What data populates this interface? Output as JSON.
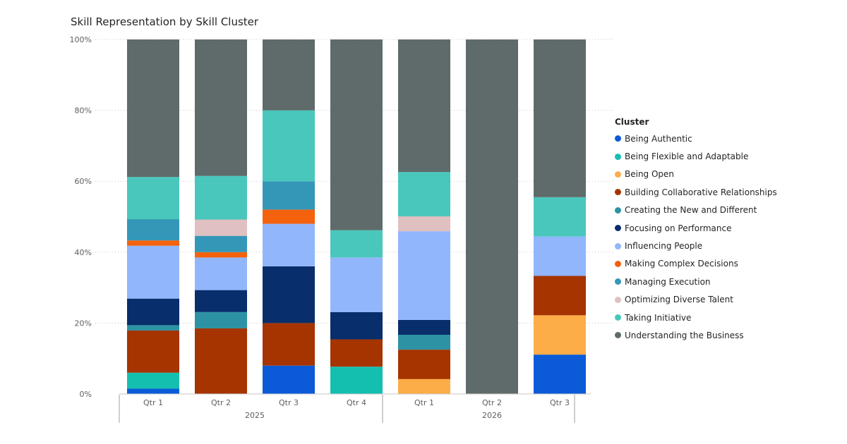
{
  "chart_data": {
    "type": "bar",
    "stacked": true,
    "normalized": true,
    "title": "Skill Representation by Skill Cluster",
    "legend_title": "Cluster",
    "legend_position": "right",
    "grid": true,
    "ylim": [
      0,
      100
    ],
    "yticks": [
      "0%",
      "20%",
      "40%",
      "60%",
      "80%",
      "100%"
    ],
    "categories": [
      "Qtr 1",
      "Qtr 2",
      "Qtr 3",
      "Qtr 4",
      "Qtr 1",
      "Qtr 2",
      "Qtr 3"
    ],
    "groups": [
      {
        "label": "2025",
        "count": 4
      },
      {
        "label": "2026",
        "count": 3
      }
    ],
    "series": [
      {
        "name": "Being Authentic",
        "color": "#0b5bd8",
        "values": [
          1.5,
          0,
          8.0,
          0,
          0,
          0,
          11.1
        ]
      },
      {
        "name": "Being Flexible and Adaptable",
        "color": "#14bfb0",
        "values": [
          4.5,
          0,
          0,
          7.7,
          0,
          0,
          0
        ]
      },
      {
        "name": "Being Open",
        "color": "#fcad47",
        "values": [
          0,
          0,
          0,
          0,
          4.2,
          0,
          11.1
        ]
      },
      {
        "name": "Building Collaborative Relationships",
        "color": "#a53400",
        "values": [
          11.9,
          18.5,
          12.0,
          7.7,
          8.3,
          0,
          11.1
        ]
      },
      {
        "name": "Creating the New and Different",
        "color": "#2d93a4",
        "values": [
          1.5,
          4.6,
          0,
          0,
          4.2,
          0,
          0
        ]
      },
      {
        "name": "Focusing on Performance",
        "color": "#082e6b",
        "values": [
          7.5,
          6.2,
          16.0,
          7.7,
          4.2,
          0,
          0
        ]
      },
      {
        "name": "Influencing People",
        "color": "#91b6fb",
        "values": [
          14.9,
          9.2,
          12.0,
          15.4,
          25.0,
          0,
          11.1
        ]
      },
      {
        "name": "Making Complex Decisions",
        "color": "#f4620e",
        "values": [
          1.5,
          1.5,
          4.0,
          0,
          0,
          0,
          0
        ]
      },
      {
        "name": "Managing Execution",
        "color": "#3597b8",
        "values": [
          6.0,
          4.6,
          8.0,
          0,
          0,
          0,
          0
        ]
      },
      {
        "name": "Optimizing Diverse Talent",
        "color": "#e0c0c0",
        "values": [
          0,
          4.6,
          0,
          0,
          4.2,
          0,
          0
        ]
      },
      {
        "name": "Taking Initiative",
        "color": "#4ac7bc",
        "values": [
          11.9,
          12.3,
          20.0,
          7.7,
          12.5,
          0,
          11.1
        ]
      },
      {
        "name": "Understanding the Business",
        "color": "#5f6b6b",
        "values": [
          38.8,
          38.5,
          20.0,
          53.8,
          37.4,
          100,
          44.5
        ]
      }
    ]
  }
}
